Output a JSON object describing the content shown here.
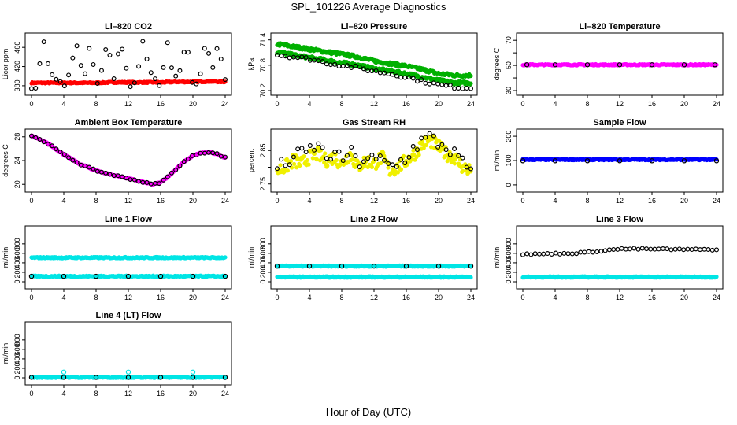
{
  "title": "SPL_101226  Average Diagnostics",
  "xlabel": "Hour of Day (UTC)",
  "chart_data": [
    {
      "type": "scatter",
      "title": "Li–820 CO2",
      "ylabel": "Licor ppm",
      "xlim": [
        0,
        24
      ],
      "ylim": [
        370,
        480
      ],
      "yticks": [
        380,
        420,
        460
      ],
      "xticks": [
        0,
        4,
        8,
        12,
        16,
        20,
        24
      ],
      "series": [
        {
          "color": "#ff0000",
          "marker": "filled",
          "x": [
            0,
            2,
            4,
            6,
            8,
            10,
            12,
            14,
            16,
            18,
            20,
            22,
            24
          ],
          "y": [
            386,
            386,
            386,
            386,
            386,
            387,
            387,
            387,
            387,
            388,
            388,
            389,
            388
          ]
        },
        {
          "color": "#000000",
          "marker": "open",
          "x": [
            0.5,
            1.5,
            2.2,
            3.0,
            3.5,
            4.0,
            4.8,
            5.5,
            6.5,
            7.3,
            8.0,
            8.7,
            9.4,
            10.2,
            11.0,
            11.8,
            12.3,
            13.0,
            13.8,
            14.6,
            15.4,
            16.0,
            16.8,
            17.6,
            18.4,
            19.2,
            20.0,
            20.8,
            21.6,
            22.4,
            23.2,
            23.8
          ],
          "y": [
            375,
            474,
            412,
            392,
            392,
            376,
            412,
            474,
            392,
            474,
            375,
            412,
            474,
            392,
            474,
            412,
            375,
            392,
            474,
            412,
            392,
            375,
            474,
            392,
            412,
            474,
            375,
            392,
            474,
            412,
            474,
            392
          ]
        }
      ]
    },
    {
      "type": "scatter",
      "title": "Li–820 Pressure",
      "ylabel": "kPa",
      "xlim": [
        0,
        24
      ],
      "ylim": [
        70.2,
        71.45
      ],
      "yticks": [
        70.2,
        70.8,
        71.4
      ],
      "xticks": [
        0,
        4,
        8,
        12,
        16,
        20,
        24
      ],
      "series": [
        {
          "color": "#00b000",
          "marker": "filled",
          "x": [
            0,
            2,
            4,
            6,
            8,
            10,
            12,
            14,
            16,
            18,
            20,
            22,
            24
          ],
          "y": [
            71.3,
            71.24,
            71.18,
            71.12,
            71.06,
            71.0,
            70.9,
            70.84,
            70.78,
            70.7,
            70.6,
            70.56,
            70.56
          ]
        },
        {
          "color": "#00b000",
          "marker": "filled",
          "x": [
            0,
            2,
            4,
            6,
            8,
            10,
            12,
            14,
            16,
            18,
            20,
            22,
            24
          ],
          "y": [
            71.12,
            71.04,
            70.98,
            70.92,
            70.86,
            70.8,
            70.72,
            70.66,
            70.6,
            70.52,
            70.44,
            70.38,
            70.38
          ]
        },
        {
          "color": "#000000",
          "marker": "open",
          "x": [
            0,
            2,
            4,
            6,
            8,
            10,
            12,
            14,
            16,
            18,
            20,
            22,
            24
          ],
          "y": [
            71.05,
            71.0,
            70.95,
            70.86,
            70.8,
            70.74,
            70.66,
            70.6,
            70.52,
            70.42,
            70.34,
            70.28,
            70.26
          ]
        }
      ]
    },
    {
      "type": "scatter",
      "title": "Li–820 Temperature",
      "ylabel": "degrees C",
      "xlim": [
        0,
        24
      ],
      "ylim": [
        30,
        72
      ],
      "yticks": [
        30,
        40,
        50,
        60,
        70
      ],
      "ytick_labels": [
        "30",
        "",
        "50",
        "",
        "70"
      ],
      "xticks": [
        0,
        4,
        8,
        12,
        16,
        20,
        24
      ],
      "series": [
        {
          "color": "#ff00ff",
          "marker": "filled",
          "x": [
            0,
            4,
            8,
            12,
            16,
            20,
            24
          ],
          "y": [
            50.5,
            50.5,
            50.5,
            50.5,
            50.5,
            50.5,
            50.5
          ]
        },
        {
          "color": "#000000",
          "marker": "open",
          "x": [
            0.5,
            4,
            8,
            12,
            16,
            20,
            23.8
          ],
          "y": [
            50.5,
            50.5,
            50.5,
            50.5,
            50.5,
            50.5,
            50.5
          ]
        }
      ]
    },
    {
      "type": "scatter",
      "title": "Ambient Box Temperature",
      "ylabel": "degrees C",
      "xlim": [
        0,
        24
      ],
      "ylim": [
        19.5,
        28.5
      ],
      "yticks": [
        20,
        24,
        28
      ],
      "xticks": [
        0,
        4,
        8,
        12,
        16,
        20,
        24
      ],
      "series": [
        {
          "color": "#ff00ff",
          "marker": "filled",
          "x": [
            0,
            2,
            4,
            6,
            8,
            10,
            12,
            14,
            15,
            16,
            17,
            18,
            19,
            20,
            21,
            22,
            23,
            24
          ],
          "y": [
            28.2,
            26.9,
            25.0,
            23.4,
            22.3,
            21.6,
            21.0,
            20.3,
            20.0,
            20.3,
            21.4,
            22.7,
            23.9,
            24.8,
            25.3,
            25.4,
            25.1,
            24.5
          ]
        },
        {
          "color": "#000000",
          "marker": "open",
          "x": [
            0,
            2,
            4,
            6,
            8,
            10,
            12,
            14,
            15,
            16,
            17,
            18,
            19,
            20,
            21,
            22,
            23,
            24
          ],
          "y": [
            28.2,
            26.9,
            25.0,
            23.4,
            22.3,
            21.6,
            21.0,
            20.3,
            20.0,
            20.3,
            21.4,
            22.7,
            23.9,
            24.8,
            25.3,
            25.4,
            25.1,
            24.5
          ]
        }
      ]
    },
    {
      "type": "scatter",
      "title": "Gas Stream RH",
      "ylabel": "percent",
      "xlim": [
        0,
        24
      ],
      "ylim": [
        2.74,
        2.9
      ],
      "yticks": [
        2.75,
        2.8,
        2.85
      ],
      "ytick_labels": [
        "2.75",
        "",
        "2.85"
      ],
      "xticks": [
        0,
        4,
        8,
        12,
        16,
        20,
        24
      ],
      "series": [
        {
          "color": "#f0f000",
          "marker": "filled",
          "x": [
            0,
            1,
            2,
            3,
            4,
            5,
            6,
            7,
            8,
            9,
            10,
            11,
            12,
            13,
            14,
            15,
            16,
            17,
            18,
            19,
            20,
            21,
            22,
            23,
            24
          ],
          "y": [
            2.79,
            2.8,
            2.82,
            2.81,
            2.83,
            2.84,
            2.82,
            2.83,
            2.81,
            2.84,
            2.8,
            2.82,
            2.81,
            2.83,
            2.79,
            2.8,
            2.82,
            2.84,
            2.87,
            2.88,
            2.86,
            2.84,
            2.83,
            2.8,
            2.79
          ]
        },
        {
          "color": "#000000",
          "marker": "open",
          "x": [
            0,
            1,
            2,
            3,
            4,
            5,
            6,
            7,
            8,
            9,
            10,
            11,
            12,
            13,
            14,
            15,
            16,
            17,
            18,
            19,
            20,
            21,
            22,
            23,
            24
          ],
          "y": [
            2.8,
            2.81,
            2.83,
            2.84,
            2.85,
            2.87,
            2.83,
            2.84,
            2.82,
            2.85,
            2.81,
            2.83,
            2.82,
            2.82,
            2.8,
            2.81,
            2.83,
            2.86,
            2.88,
            2.89,
            2.87,
            2.86,
            2.84,
            2.81,
            2.79
          ]
        }
      ]
    },
    {
      "type": "scatter",
      "title": "Sample Flow",
      "ylabel": "ml/min",
      "xlim": [
        0,
        24
      ],
      "ylim": [
        -10,
        210
      ],
      "yticks": [
        0,
        100,
        200
      ],
      "xticks": [
        0,
        4,
        8,
        12,
        16,
        20,
        24
      ],
      "series": [
        {
          "color": "#0000ff",
          "marker": "filled",
          "x": [
            0,
            4,
            8,
            12,
            16,
            20,
            24
          ],
          "y": [
            104,
            104,
            104,
            104,
            104,
            104,
            104
          ]
        },
        {
          "color": "#000000",
          "marker": "open",
          "x": [
            0,
            4,
            8,
            12,
            16,
            20,
            24
          ],
          "y": [
            99,
            99,
            99,
            99,
            99,
            99,
            99
          ]
        }
      ]
    },
    {
      "type": "scatter",
      "title": "Line 1 Flow",
      "ylabel": "ml/min",
      "xlim": [
        0,
        24
      ],
      "ylim": [
        -50,
        1080
      ],
      "yticks": [
        0,
        200,
        400,
        600,
        800
      ],
      "xticks": [
        0,
        4,
        8,
        12,
        16,
        20,
        24
      ],
      "series": [
        {
          "color": "#00e5e5",
          "marker": "filled",
          "x": [
            0,
            4,
            8,
            12,
            16,
            20,
            24
          ],
          "y": [
            510,
            510,
            510,
            510,
            510,
            510,
            510
          ]
        },
        {
          "color": "#00e5e5",
          "marker": "filled",
          "x": [
            0,
            4,
            8,
            12,
            16,
            20,
            24
          ],
          "y": [
            115,
            115,
            115,
            115,
            115,
            115,
            115
          ]
        },
        {
          "color": "#000000",
          "marker": "open",
          "x": [
            0,
            4,
            8,
            12,
            16,
            20,
            24
          ],
          "y": [
            115,
            115,
            115,
            115,
            115,
            115,
            115
          ]
        }
      ]
    },
    {
      "type": "scatter",
      "title": "Line 2 Flow",
      "ylabel": "ml/min",
      "xlim": [
        0,
        24
      ],
      "ylim": [
        -50,
        1080
      ],
      "yticks": [
        0,
        200,
        400,
        600,
        800
      ],
      "xticks": [
        0,
        4,
        8,
        12,
        16,
        20,
        24
      ],
      "series": [
        {
          "color": "#00e5e5",
          "marker": "filled",
          "x": [
            0,
            4,
            8,
            12,
            16,
            20,
            24
          ],
          "y": [
            330,
            330,
            330,
            330,
            330,
            330,
            330
          ]
        },
        {
          "color": "#00e5e5",
          "marker": "filled",
          "x": [
            0,
            4,
            8,
            12,
            16,
            20,
            24
          ],
          "y": [
            100,
            100,
            100,
            100,
            100,
            100,
            100
          ]
        },
        {
          "color": "#000000",
          "marker": "open",
          "x": [
            0,
            4,
            8,
            12,
            16,
            20,
            24
          ],
          "y": [
            330,
            330,
            330,
            330,
            330,
            330,
            330
          ]
        }
      ]
    },
    {
      "type": "scatter",
      "title": "Line 3 Flow",
      "ylabel": "ml/min",
      "xlim": [
        0,
        24
      ],
      "ylim": [
        -50,
        1080
      ],
      "yticks": [
        0,
        200,
        400,
        600,
        800
      ],
      "xticks": [
        0,
        4,
        8,
        12,
        16,
        20,
        24
      ],
      "series": [
        {
          "color": "#00e5e5",
          "marker": "filled",
          "x": [
            0,
            4,
            8,
            12,
            16,
            20,
            24
          ],
          "y": [
            100,
            100,
            100,
            100,
            100,
            100,
            100
          ]
        },
        {
          "color": "#000000",
          "marker": "open",
          "x": [
            0,
            2,
            4,
            6,
            8,
            10,
            12,
            14,
            16,
            18,
            20,
            22,
            24
          ],
          "y": [
            580,
            585,
            595,
            600,
            620,
            660,
            690,
            695,
            690,
            685,
            680,
            680,
            680
          ]
        }
      ]
    },
    {
      "type": "scatter",
      "title": "Line 4 (LT) Flow",
      "ylabel": "ml/min",
      "xlim": [
        0,
        24
      ],
      "ylim": [
        -50,
        1080
      ],
      "yticks": [
        0,
        200,
        400,
        600,
        800
      ],
      "xticks": [
        0,
        4,
        8,
        12,
        16,
        20,
        24
      ],
      "series": [
        {
          "color": "#00e5e5",
          "marker": "filled",
          "x": [
            0,
            4,
            8,
            12,
            16,
            20,
            24
          ],
          "y": [
            10,
            10,
            10,
            10,
            10,
            10,
            10
          ]
        },
        {
          "color": "#00e5e5",
          "marker": "open",
          "x": [
            4,
            12,
            20
          ],
          "y": [
            120,
            120,
            120
          ]
        },
        {
          "color": "#000000",
          "marker": "open",
          "x": [
            0,
            4,
            8,
            12,
            16,
            20,
            24
          ],
          "y": [
            10,
            10,
            10,
            10,
            10,
            10,
            10
          ]
        }
      ]
    }
  ]
}
